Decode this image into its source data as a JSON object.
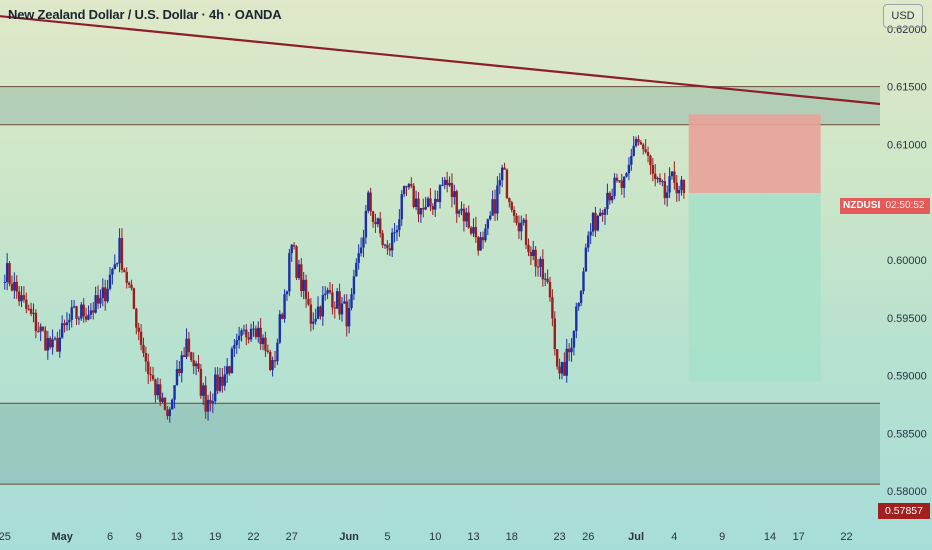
{
  "header": {
    "title": "New Zealand Dollar / U.S. Dollar · 4h · OANDA",
    "currency_button": "USD"
  },
  "price_tags": {
    "symbol": "NZDUSD",
    "countdown": "02:50:52",
    "bottom_price": "0.57857"
  },
  "colors": {
    "candle_up": "#1b2fa8",
    "candle_down": "#9b1d1d",
    "trendline": "#8b1e2a",
    "zone_fill": "#5e8e8a",
    "zone_line": "#6a4a3a",
    "stop_zone": "#e8a29a",
    "target_zone": "#a6e0c8",
    "tag_red": "#e35b5b"
  },
  "chart_data": {
    "type": "candlestick",
    "title": "New Zealand Dollar / U.S. Dollar · 4h · OANDA",
    "y_axis": {
      "ticks": [
        "0.62000",
        "0.61500",
        "0.61000",
        "0.60000",
        "0.59500",
        "0.59000",
        "0.58500",
        "0.58000"
      ],
      "tick_values": [
        0.62,
        0.615,
        0.61,
        0.6,
        0.595,
        0.59,
        0.585,
        0.58
      ],
      "range": [
        0.5775,
        0.6225
      ]
    },
    "x_axis": {
      "labels": [
        {
          "text": "25",
          "day": 0,
          "bold": false
        },
        {
          "text": "May",
          "day": 6,
          "bold": true
        },
        {
          "text": "6",
          "day": 11,
          "bold": false
        },
        {
          "text": "9",
          "day": 14,
          "bold": false
        },
        {
          "text": "13",
          "day": 18,
          "bold": false
        },
        {
          "text": "19",
          "day": 22,
          "bold": false
        },
        {
          "text": "22",
          "day": 26,
          "bold": false
        },
        {
          "text": "27",
          "day": 30,
          "bold": false
        },
        {
          "text": "Jun",
          "day": 36,
          "bold": true
        },
        {
          "text": "5",
          "day": 40,
          "bold": false
        },
        {
          "text": "10",
          "day": 45,
          "bold": false
        },
        {
          "text": "13",
          "day": 49,
          "bold": false
        },
        {
          "text": "18",
          "day": 53,
          "bold": false
        },
        {
          "text": "23",
          "day": 58,
          "bold": false
        },
        {
          "text": "26",
          "day": 61,
          "bold": false
        },
        {
          "text": "Jul",
          "day": 66,
          "bold": true
        },
        {
          "text": "4",
          "day": 70,
          "bold": false
        },
        {
          "text": "9",
          "day": 75,
          "bold": false
        },
        {
          "text": "14",
          "day": 80,
          "bold": false
        },
        {
          "text": "17",
          "day": 83,
          "bold": false
        },
        {
          "text": "22",
          "day": 88,
          "bold": false
        }
      ],
      "range": [
        -0.5,
        91.5
      ]
    },
    "zones": [
      {
        "name": "resistance",
        "from": 0.6117,
        "to": 0.615
      },
      {
        "name": "support",
        "from": 0.5806,
        "to": 0.5876
      }
    ],
    "trendline": {
      "start": {
        "day": -0.5,
        "price": 0.6211
      },
      "end": {
        "day": 91.5,
        "price": 0.6135
      }
    },
    "position": {
      "type": "short",
      "entry": 0.6058,
      "stop": 0.6126,
      "target": 0.5895,
      "from_day": 71.5,
      "to_day": 85.3
    },
    "current_price": 0.6058,
    "close_keyframes": [
      [
        0,
        0.5992
      ],
      [
        2,
        0.596
      ],
      [
        5,
        0.5922
      ],
      [
        7,
        0.595
      ],
      [
        10,
        0.5962
      ],
      [
        12,
        0.601
      ],
      [
        13,
        0.5975
      ],
      [
        15,
        0.5905
      ],
      [
        17,
        0.5862
      ],
      [
        19,
        0.593
      ],
      [
        21,
        0.5878
      ],
      [
        23,
        0.5902
      ],
      [
        26,
        0.595
      ],
      [
        28,
        0.5905
      ],
      [
        30,
        0.601
      ],
      [
        32,
        0.595
      ],
      [
        34,
        0.5972
      ],
      [
        36,
        0.595
      ],
      [
        38,
        0.605
      ],
      [
        40,
        0.6005
      ],
      [
        42,
        0.606
      ],
      [
        44,
        0.604
      ],
      [
        46,
        0.6068
      ],
      [
        48,
        0.604
      ],
      [
        50,
        0.601
      ],
      [
        52,
        0.6075
      ],
      [
        54,
        0.603
      ],
      [
        56,
        0.599
      ],
      [
        57,
        0.597
      ],
      [
        58,
        0.5895
      ],
      [
        59,
        0.592
      ],
      [
        61,
        0.602
      ],
      [
        63,
        0.606
      ],
      [
        65,
        0.6065
      ],
      [
        66,
        0.6108
      ],
      [
        67,
        0.6092
      ],
      [
        68,
        0.6065
      ],
      [
        69,
        0.6055
      ],
      [
        70,
        0.607
      ],
      [
        71,
        0.6058
      ]
    ]
  }
}
